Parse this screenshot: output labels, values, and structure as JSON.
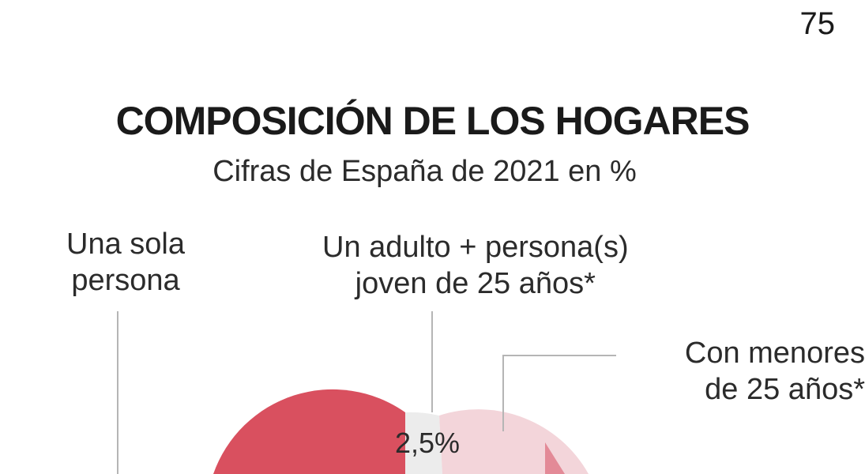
{
  "page_number": "75",
  "chart_data": {
    "type": "pie",
    "title": "COMPOSICIÓN DE LOS HOGARES",
    "subtitle": "Cifras de España de 2021 en %",
    "slices": [
      {
        "name_lines": [
          "Una sola",
          "persona"
        ],
        "value": null,
        "color": "#d9505f"
      },
      {
        "name_lines": [
          "Un adulto +  persona(s)",
          "joven de 25 años*"
        ],
        "value": 2.5,
        "value_label": "2,5%",
        "color": "#ececec"
      },
      {
        "name_lines": [
          "Con menores",
          "de 25 años*"
        ],
        "value": null,
        "color": "#f3d5da"
      }
    ]
  }
}
